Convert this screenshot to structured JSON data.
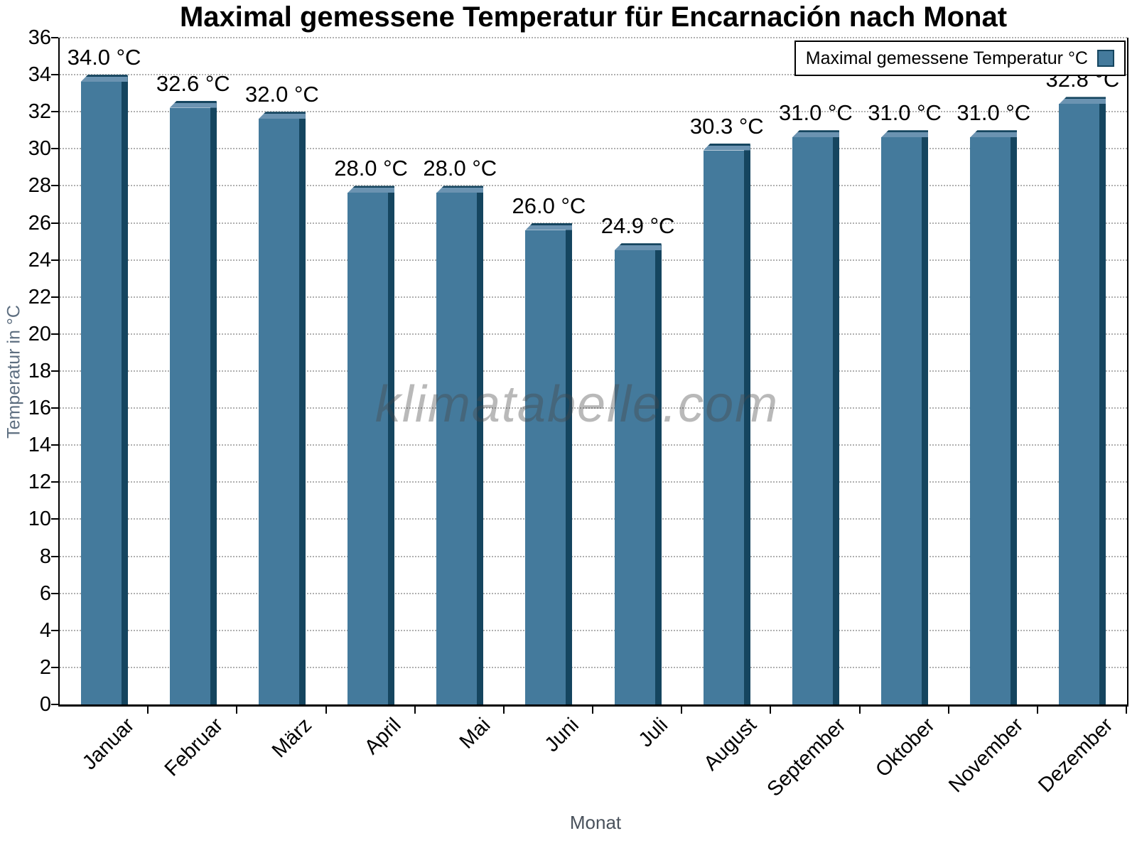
{
  "title": "Maximal gemessene Temperatur für Encarnación nach Monat",
  "watermark": "klimatabelle.com",
  "legend": {
    "label": "Maximal gemessene Temperatur °C"
  },
  "axes": {
    "y_title": "Temperatur in °C",
    "x_title": "Monat"
  },
  "colors": {
    "bar_face": "#447a9c",
    "bar_bevel": "#6b93b1",
    "bar_side": "#15455f",
    "grid": "#b0b0b0",
    "axis": "#000000",
    "y_title_color": "#5d6e80",
    "x_title_color": "#4a525c"
  },
  "chart_data": {
    "type": "bar",
    "title": "Maximal gemessene Temperatur für Encarnación nach Monat",
    "categories": [
      "Januar",
      "Februar",
      "März",
      "April",
      "Mai",
      "Juni",
      "Juli",
      "August",
      "September",
      "Oktober",
      "November",
      "Dezember"
    ],
    "series": [
      {
        "name": "Maximal gemessene Temperatur °C",
        "values": [
          34.0,
          32.6,
          32.0,
          28.0,
          28.0,
          26.0,
          24.9,
          30.3,
          31.0,
          31.0,
          31.0,
          32.8
        ]
      }
    ],
    "value_labels": [
      "34.0 °C",
      "32.6 °C",
      "32.0 °C",
      "28.0 °C",
      "28.0 °C",
      "26.0 °C",
      "24.9 °C",
      "30.3 °C",
      "31.0 °C",
      "31.0 °C",
      "31.0 °C",
      "32.8 °C"
    ],
    "xlabel": "Monat",
    "ylabel": "Temperatur in °C",
    "ylim": [
      0,
      36
    ],
    "ytick_step": 2,
    "grid": "horizontal-dotted",
    "legend_position": "top-right",
    "bar_style": "3d"
  }
}
